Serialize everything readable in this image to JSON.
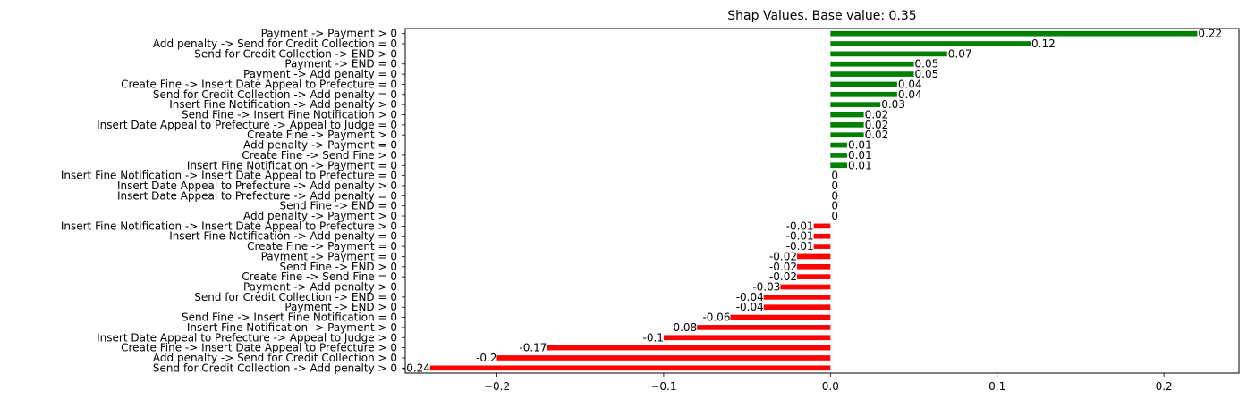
{
  "chart_data": {
    "type": "bar",
    "orientation": "horizontal",
    "title": "Shap Values. Base value: 0.35",
    "xlabel": "",
    "ylabel": "",
    "xlim": [
      -0.255,
      0.245
    ],
    "xticks": [
      -0.2,
      -0.1,
      0.0,
      0.1,
      0.2
    ],
    "xtick_labels": [
      "−0.2",
      "−0.1",
      "0.0",
      "0.1",
      "0.2"
    ],
    "grid": false,
    "legend": "none",
    "colors": {
      "positive": "#008000",
      "negative": "#ff0000"
    },
    "categories": [
      "Payment -> Payment > 0",
      "Add penalty -> Send for Credit Collection = 0",
      "Send for Credit Collection -> END > 0",
      "Payment -> END = 0",
      "Payment -> Add penalty = 0",
      "Create Fine -> Insert Date Appeal to Prefecture = 0",
      "Send for Credit Collection -> Add penalty = 0",
      "Insert Fine Notification -> Add penalty > 0",
      "Send Fine -> Insert Fine Notification > 0",
      "Insert Date Appeal to Prefecture -> Appeal to Judge = 0",
      "Create Fine -> Payment > 0",
      "Add penalty -> Payment = 0",
      "Create Fine -> Send Fine > 0",
      "Insert Fine Notification -> Payment = 0",
      "Insert Fine Notification -> Insert Date Appeal to Prefecture = 0",
      "Insert Date Appeal to Prefecture -> Add penalty > 0",
      "Insert Date Appeal to Prefecture -> Add penalty = 0",
      "Send Fine -> END = 0",
      "Add penalty -> Payment > 0",
      "Insert Fine Notification -> Insert Date Appeal to Prefecture > 0",
      "Insert Fine Notification -> Add penalty = 0",
      "Create Fine -> Payment = 0",
      "Payment -> Payment = 0",
      "Send Fine -> END > 0",
      "Create Fine -> Send Fine = 0",
      "Payment -> Add penalty > 0",
      "Send for Credit Collection -> END = 0",
      "Payment -> END > 0",
      "Send Fine -> Insert Fine Notification = 0",
      "Insert Fine Notification -> Payment > 0",
      "Insert Date Appeal to Prefecture -> Appeal to Judge > 0",
      "Create Fine -> Insert Date Appeal to Prefecture > 0",
      "Add penalty -> Send for Credit Collection > 0",
      "Send for Credit Collection -> Add penalty > 0"
    ],
    "values": [
      0.22,
      0.12,
      0.07,
      0.05,
      0.05,
      0.04,
      0.04,
      0.03,
      0.02,
      0.02,
      0.02,
      0.01,
      0.01,
      0.01,
      0,
      0,
      0,
      0,
      0,
      -0.01,
      -0.01,
      -0.01,
      -0.02,
      -0.02,
      -0.02,
      -0.03,
      -0.04,
      -0.04,
      -0.06,
      -0.08,
      -0.1,
      -0.17,
      -0.2,
      -0.24
    ],
    "value_labels": [
      "0.22",
      "0.12",
      "0.07",
      "0.05",
      "0.05",
      "0.04",
      "0.04",
      "0.03",
      "0.02",
      "0.02",
      "0.02",
      "0.01",
      "0.01",
      "0.01",
      "0",
      "0",
      "0",
      "0",
      "0",
      "-0.01",
      "-0.01",
      "-0.01",
      "-0.02",
      "-0.02",
      "-0.02",
      "-0.03",
      "-0.04",
      "-0.04",
      "-0.06",
      "-0.08",
      "-0.1",
      "-0.17",
      "-0.2",
      "-0.24"
    ]
  }
}
